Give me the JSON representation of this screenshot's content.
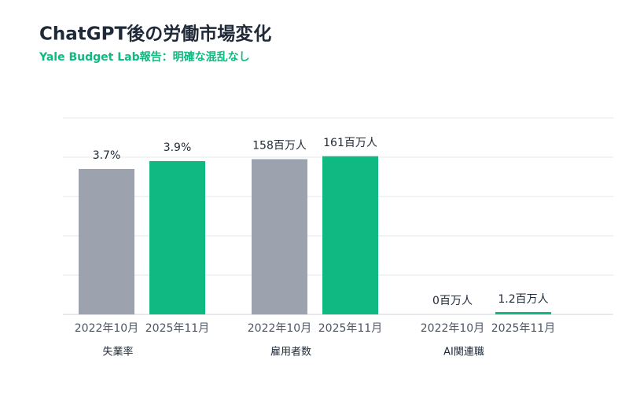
{
  "chart_data": {
    "type": "bar",
    "title": "ChatGPT後の労働市場変化",
    "subtitle": "Yale Budget Lab報告：明確な混乱なし",
    "categories": [
      "失業率",
      "雇用者数",
      "AI関連職"
    ],
    "ylims": [
      [
        0,
        5
      ],
      [
        0,
        200
      ],
      [
        0,
        150
      ]
    ],
    "yticks": [
      0,
      1,
      2,
      3,
      4,
      5
    ],
    "grid": true,
    "series": [
      {
        "name": "2022年10月",
        "color": "#9ca3af",
        "values": [
          3.7,
          158,
          0
        ],
        "value_labels": [
          "3.7%",
          "158百万人",
          "0百万人"
        ]
      },
      {
        "name": "2025年11月",
        "color": "#10b981",
        "values": [
          3.9,
          161,
          1.2
        ],
        "value_labels": [
          "3.9%",
          "161百万人",
          "1.2百万人"
        ]
      }
    ]
  }
}
